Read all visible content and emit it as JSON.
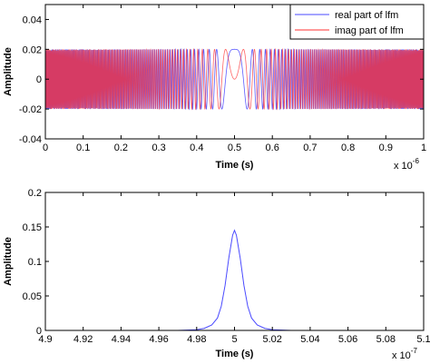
{
  "chart_data": [
    {
      "type": "line",
      "xlabel": "Time (s)",
      "ylabel": "Amplitude",
      "x_multiplier_label": "x 10",
      "x_multiplier_exp": "-6",
      "xlim": [
        0,
        1
      ],
      "ylim": [
        -0.04,
        0.05
      ],
      "xticks": [
        "0",
        "0.1",
        "0.2",
        "0.3",
        "0.4",
        "0.5",
        "0.6",
        "0.7",
        "0.8",
        "0.9",
        "1"
      ],
      "yticks": [
        "-0.04",
        "-0.02",
        "0",
        "0.02",
        "0.04"
      ],
      "legend_position": "top-right",
      "grid": false,
      "signal": {
        "amplitude": 0.02,
        "center": 0.5,
        "chirp_rate": 900
      },
      "series": [
        {
          "name": "real part of lfm",
          "color": "#4a4aff",
          "component": "real"
        },
        {
          "name": "imag part of lfm",
          "color": "#ff3030",
          "component": "imag"
        }
      ]
    },
    {
      "type": "line",
      "xlabel": "Time (s)",
      "ylabel": "Amplitude",
      "x_multiplier_label": "x 10",
      "x_multiplier_exp": "-7",
      "xlim": [
        4.9,
        5.1
      ],
      "ylim": [
        0,
        0.2
      ],
      "xticks": [
        "4.9",
        "4.92",
        "4.94",
        "4.96",
        "4.98",
        "5",
        "5.02",
        "5.04",
        "5.06",
        "5.08",
        "5.1"
      ],
      "yticks": [
        "0",
        "0.05",
        "0.1",
        "0.15",
        "0.2"
      ],
      "grid": false,
      "series": [
        {
          "color": "#4a4aff",
          "x": [
            4.9,
            4.97,
            4.98,
            4.984,
            4.988,
            4.991,
            4.993,
            4.995,
            4.997,
            4.999,
            5.0,
            5.001,
            5.003,
            5.005,
            5.007,
            5.009,
            5.012,
            5.016,
            5.02,
            5.03,
            5.1
          ],
          "y": [
            0,
            0,
            0.001,
            0.003,
            0.008,
            0.018,
            0.035,
            0.065,
            0.105,
            0.138,
            0.145,
            0.138,
            0.105,
            0.065,
            0.035,
            0.018,
            0.008,
            0.003,
            0.001,
            0,
            0
          ]
        }
      ]
    }
  ]
}
